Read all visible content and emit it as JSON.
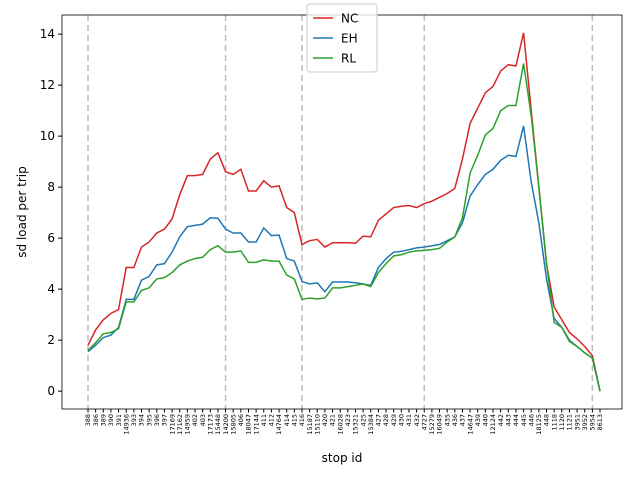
{
  "chart_data": {
    "type": "line",
    "xlabel": "stop id",
    "ylabel": "sd load per trip",
    "categories": [
      "388",
      "386",
      "389",
      "390",
      "391",
      "14936",
      "393",
      "394",
      "395",
      "396",
      "397",
      "17169",
      "17162",
      "14959",
      "402",
      "403",
      "17173",
      "15448",
      "14200",
      "15805",
      "406",
      "18047",
      "17144",
      "411",
      "412",
      "14764",
      "414",
      "415",
      "416",
      "15187",
      "15110",
      "420",
      "421",
      "16028",
      "423",
      "15321",
      "425",
      "15384",
      "427",
      "428",
      "429",
      "430",
      "431",
      "432",
      "4727",
      "15279",
      "16049",
      "435",
      "436",
      "437",
      "14647",
      "439",
      "440",
      "12124",
      "442",
      "443",
      "444",
      "445",
      "446",
      "18125",
      "448",
      "1118",
      "1120",
      "1121",
      "3951",
      "3952",
      "5954",
      "8613"
    ],
    "series": [
      {
        "name": "NC",
        "color": "#d62728",
        "values": [
          1.8,
          2.4,
          2.8,
          3.05,
          3.2,
          4.85,
          4.85,
          5.65,
          5.85,
          6.2,
          6.35,
          6.75,
          7.7,
          8.45,
          8.45,
          8.5,
          9.1,
          9.35,
          8.6,
          8.5,
          8.7,
          7.85,
          7.85,
          8.25,
          8.0,
          8.05,
          7.2,
          7.0,
          5.75,
          5.9,
          5.95,
          5.65,
          5.82,
          5.82,
          5.82,
          5.8,
          6.08,
          6.05,
          6.7,
          6.95,
          7.2,
          7.25,
          7.28,
          7.2,
          7.35,
          7.45,
          7.6,
          7.75,
          7.95,
          9.1,
          10.5,
          11.1,
          11.7,
          11.95,
          12.55,
          12.8,
          12.75,
          14.05,
          11.0,
          8.0,
          5.0,
          3.3,
          2.8,
          2.3,
          2.05,
          1.75,
          1.4,
          0
        ]
      },
      {
        "name": "EH",
        "color": "#1f77b4",
        "values": [
          1.55,
          1.8,
          2.1,
          2.2,
          2.5,
          3.6,
          3.6,
          4.35,
          4.5,
          4.95,
          5.0,
          5.45,
          6.05,
          6.45,
          6.5,
          6.55,
          6.8,
          6.78,
          6.35,
          6.2,
          6.2,
          5.85,
          5.85,
          6.4,
          6.1,
          6.12,
          5.2,
          5.1,
          4.3,
          4.2,
          4.25,
          3.9,
          4.28,
          4.28,
          4.28,
          4.25,
          4.2,
          4.15,
          4.85,
          5.2,
          5.45,
          5.48,
          5.55,
          5.62,
          5.65,
          5.7,
          5.75,
          5.9,
          6.05,
          6.6,
          7.65,
          8.1,
          8.5,
          8.7,
          9.05,
          9.25,
          9.2,
          10.4,
          8.2,
          6.6,
          4.4,
          2.85,
          2.5,
          2.0,
          1.75,
          1.5,
          1.3,
          0
        ]
      },
      {
        "name": "RL",
        "color": "#2ca02c",
        "values": [
          1.6,
          1.9,
          2.25,
          2.3,
          2.45,
          3.5,
          3.5,
          3.95,
          4.05,
          4.4,
          4.45,
          4.65,
          4.95,
          5.1,
          5.2,
          5.25,
          5.55,
          5.7,
          5.45,
          5.45,
          5.5,
          5.05,
          5.05,
          5.15,
          5.1,
          5.1,
          4.55,
          4.4,
          3.6,
          3.65,
          3.62,
          3.65,
          4.05,
          4.05,
          4.1,
          4.15,
          4.2,
          4.1,
          4.65,
          5.0,
          5.3,
          5.35,
          5.45,
          5.5,
          5.52,
          5.55,
          5.6,
          5.85,
          6.05,
          6.8,
          8.55,
          9.25,
          10.05,
          10.3,
          11.0,
          11.2,
          11.2,
          12.85,
          10.8,
          8.0,
          5.0,
          2.7,
          2.5,
          1.95,
          1.75,
          1.5,
          1.3,
          0
        ]
      }
    ],
    "vlines": [
      "388",
      "14200",
      "416",
      "4727",
      "5954"
    ],
    "vline_color": "#bbbbbb",
    "ylim": [
      -0.7,
      14.75
    ],
    "yticks": [
      0,
      2,
      4,
      6,
      8,
      10,
      12,
      14
    ],
    "legend": "upper center"
  }
}
